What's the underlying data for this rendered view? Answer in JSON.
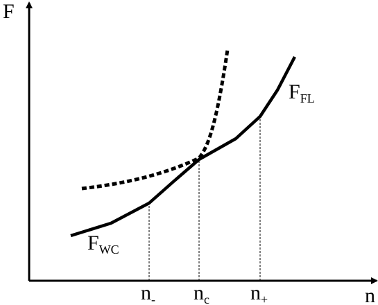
{
  "axes": {
    "y_label": "F",
    "x_label": "n"
  },
  "ticks": [
    {
      "main": "n",
      "sub": "-"
    },
    {
      "main": "n",
      "sub": "c"
    },
    {
      "main": "n",
      "sub": "+"
    }
  ],
  "curves": [
    {
      "main": "F",
      "sub": "FL"
    },
    {
      "main": "F",
      "sub": "WC"
    }
  ]
}
